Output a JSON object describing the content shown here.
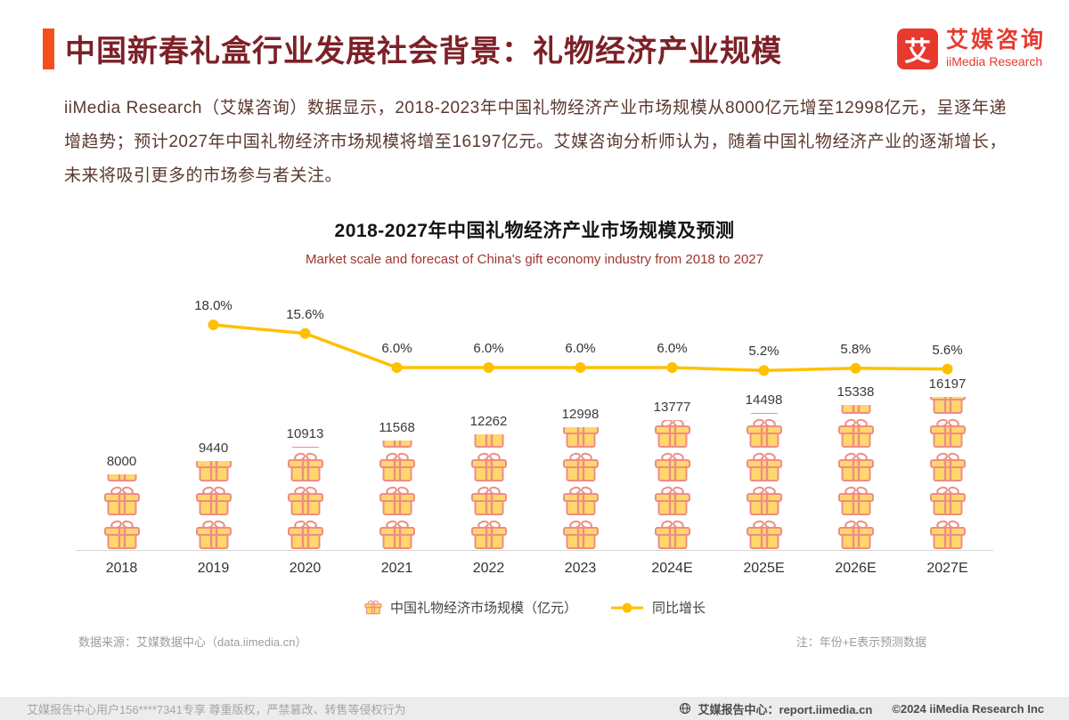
{
  "header": {
    "title": "中国新春礼盒行业发展社会背景：礼物经济产业规模",
    "logo": {
      "mark": "艾",
      "name_cn": "艾媒咨询",
      "name_en": "iiMedia Research"
    }
  },
  "intro": {
    "text": "iiMedia Research（艾媒咨询）数据显示，2018-2023年中国礼物经济产业市场规模从8000亿元增至12998亿元，呈逐年递增趋势；预计2027年中国礼物经济市场规模将增至16197亿元。艾媒咨询分析师认为，随着中国礼物经济产业的逐渐增长，未来将吸引更多的市场参与者关注。"
  },
  "chart": {
    "title": "2018-2027年中国礼物经济产业市场规模及预测",
    "subtitle": "Market scale and forecast of China's gift economy industry from 2018 to 2027",
    "legend_bar": "中国礼物经济市场规模（亿元）",
    "legend_line": "同比增长",
    "source": "数据来源：艾媒数据中心（data.iimedia.cn）",
    "note": "注：年份+E表示预测数据"
  },
  "chart_data": {
    "type": "bar",
    "subtype": "pictograph bar (gift-box icons) with year-over-year growth line overlay",
    "categories": [
      "2018",
      "2019",
      "2020",
      "2021",
      "2022",
      "2023",
      "2024E",
      "2025E",
      "2026E",
      "2027E"
    ],
    "series": [
      {
        "name": "中国礼物经济市场规模（亿元）",
        "type": "bar",
        "unit": "亿元",
        "values": [
          8000,
          9440,
          10913,
          11568,
          12262,
          12998,
          13777,
          14498,
          15338,
          16197
        ]
      },
      {
        "name": "同比增长",
        "type": "line",
        "unit": "%",
        "values": [
          null,
          18.0,
          15.6,
          6.0,
          6.0,
          6.0,
          6.0,
          5.2,
          5.8,
          5.6
        ]
      }
    ],
    "value_labels": true,
    "grid": false,
    "legend_position": "bottom",
    "title": "2018-2027年中国礼物经济产业市场规模及预测",
    "subtitle": "Market scale and forecast of China's gift economy industry from 2018 to 2027"
  },
  "footer": {
    "left": "艾媒报告中心用户156****7341专享 尊重版权，严禁篡改、转售等侵权行为",
    "site": "艾媒报告中心：report.iimedia.cn",
    "copyright": "©2024 iiMedia Research Inc"
  },
  "colors": {
    "accent_orange": "#f4501e",
    "title_maroon": "#7d2128",
    "logo_red": "#e8392e",
    "line_yellow": "#ffc000",
    "gift_pink": "#ef8d84",
    "gift_yellow": "#ffd76a"
  }
}
